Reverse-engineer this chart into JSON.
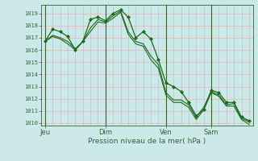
{
  "bg_color": "#cce8e8",
  "grid_color_h": "#ffaaaa",
  "grid_color_v": "#aacccc",
  "line_color": "#1a6b1a",
  "marker_color": "#1a6b1a",
  "ylabel_ticks": [
    1010,
    1011,
    1012,
    1013,
    1014,
    1015,
    1016,
    1017,
    1018,
    1019
  ],
  "ylim": [
    1009.8,
    1019.7
  ],
  "xlabel": "Pression niveau de la mer( hPa )",
  "day_labels": [
    "Jeu",
    "Dim",
    "Ven",
    "Sam"
  ],
  "day_positions": [
    0,
    8,
    16,
    22
  ],
  "series": [
    [
      1016.7,
      1017.7,
      1017.5,
      1017.1,
      1016.0,
      1016.7,
      1018.5,
      1018.7,
      1018.4,
      1019.0,
      1019.3,
      1018.7,
      1017.0,
      1017.5,
      1016.9,
      1015.2,
      1013.3,
      1013.0,
      1012.6,
      1011.7,
      1010.6,
      1011.1,
      1012.7,
      1012.5,
      1011.7,
      1011.7,
      1010.5,
      1010.2
    ],
    [
      1016.7,
      1017.2,
      1017.0,
      1016.7,
      1016.1,
      1016.7,
      1017.8,
      1018.5,
      1018.3,
      1018.8,
      1019.2,
      1017.5,
      1016.7,
      1016.5,
      1015.5,
      1014.8,
      1012.5,
      1011.9,
      1011.9,
      1011.5,
      1010.5,
      1011.3,
      1012.6,
      1012.3,
      1011.5,
      1011.6,
      1010.4,
      1010.1
    ],
    [
      1016.7,
      1017.1,
      1016.9,
      1016.5,
      1016.0,
      1016.7,
      1017.5,
      1018.3,
      1018.2,
      1018.6,
      1019.1,
      1017.3,
      1016.5,
      1016.3,
      1015.2,
      1014.5,
      1012.3,
      1011.7,
      1011.7,
      1011.3,
      1010.3,
      1011.1,
      1012.5,
      1012.2,
      1011.4,
      1011.4,
      1010.3,
      1009.9
    ]
  ],
  "xlim": [
    -0.5,
    27.5
  ],
  "vline_positions": [
    0,
    8,
    16,
    22
  ],
  "vline_color": "#336633",
  "tick_label_color": "#336633",
  "xlabel_color": "#336633",
  "spine_color": "#336633"
}
